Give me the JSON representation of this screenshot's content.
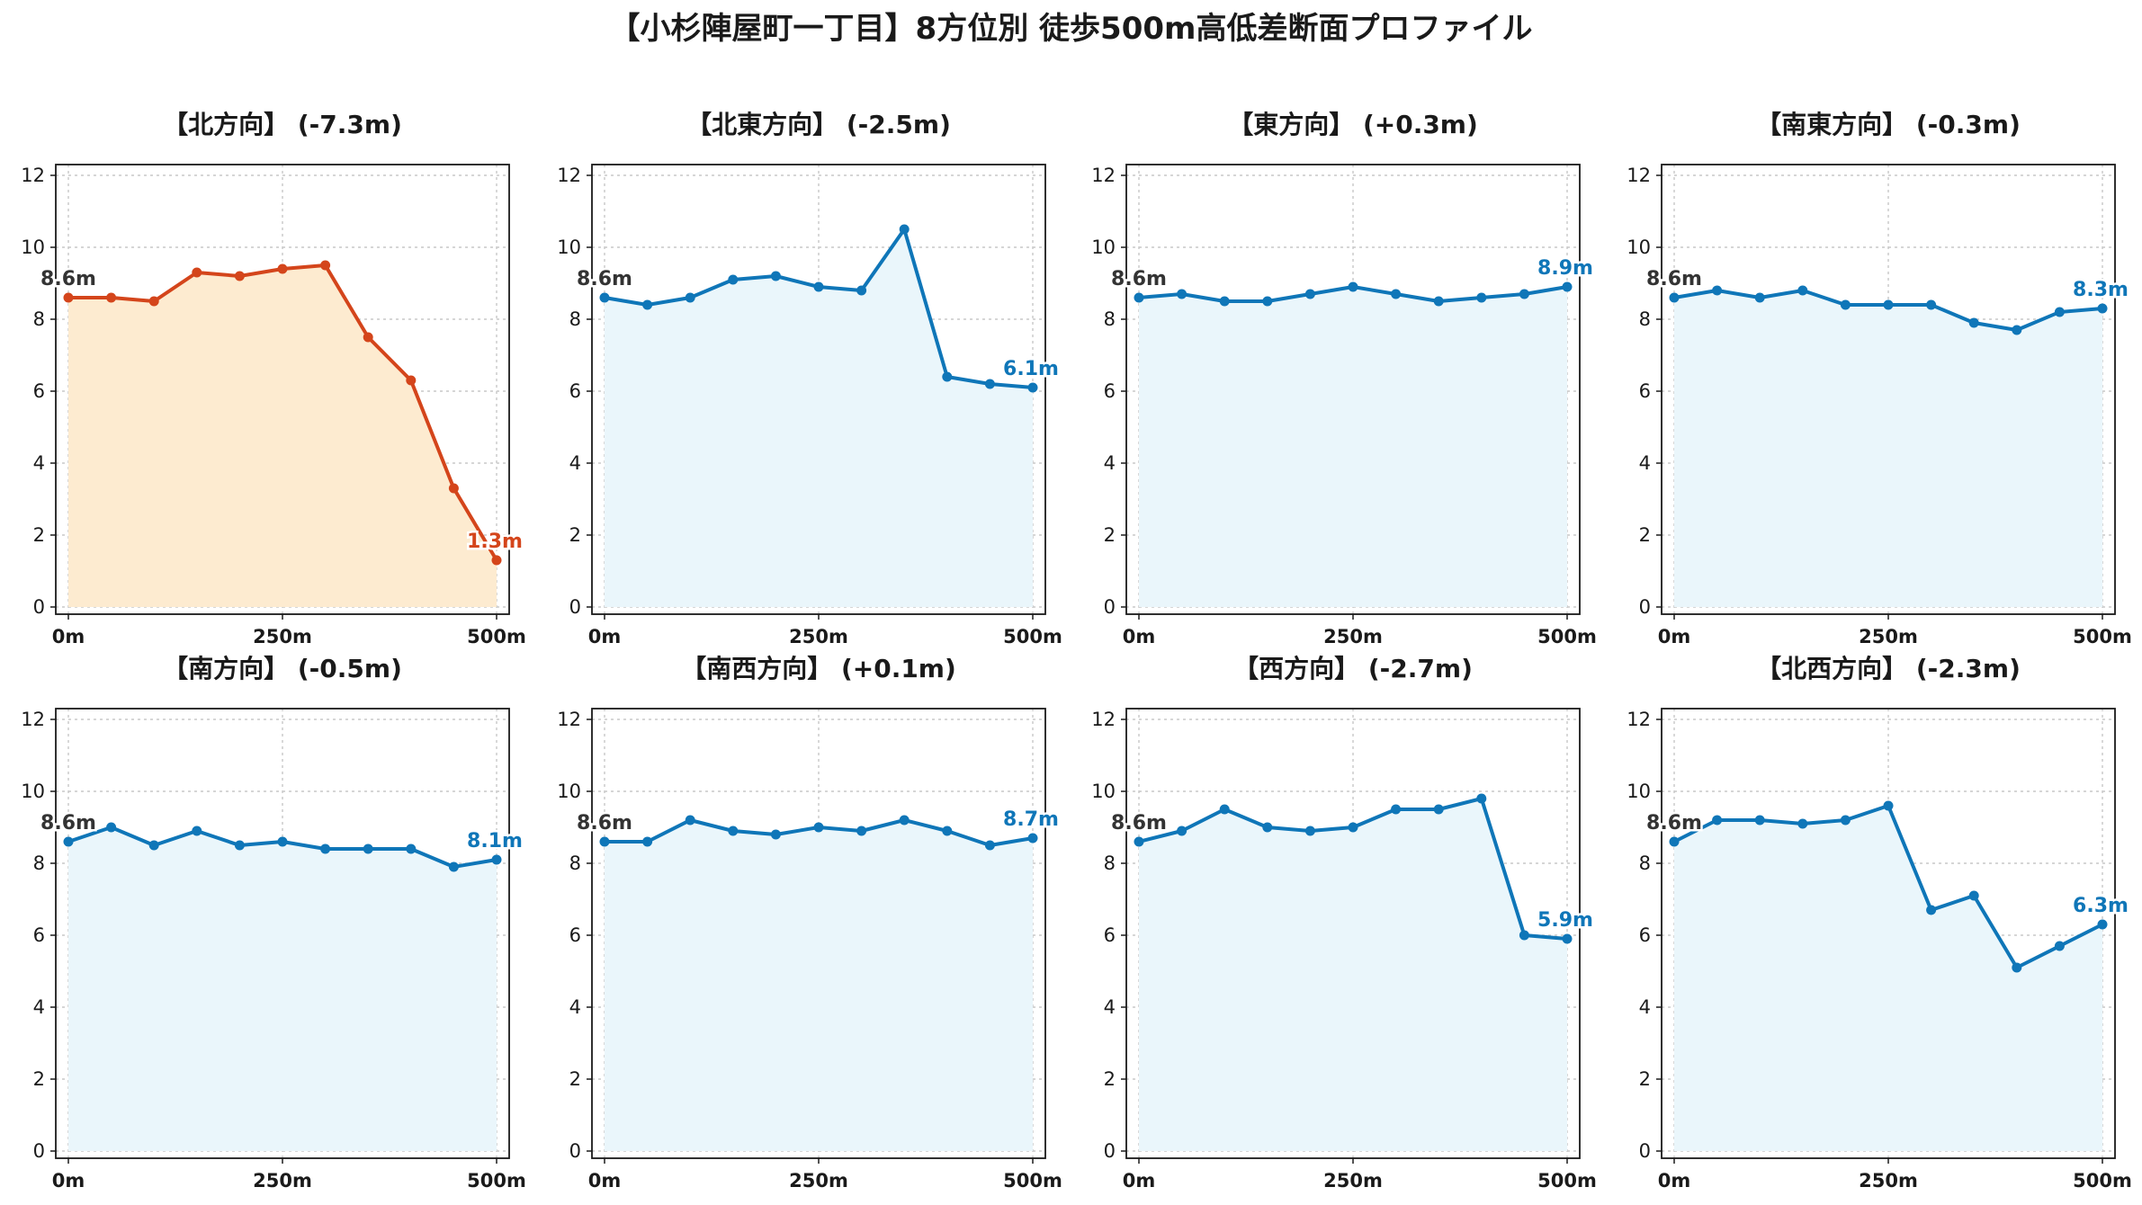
{
  "title": "【小杉陣屋町一丁目】8方位別 徒歩500m高低差断面プロファイル",
  "colors": {
    "down_line": "#d4451b",
    "down_fill": "#fdebd0",
    "normal_line": "#0f76b8",
    "normal_fill": "#eaf6fb",
    "start_label": "#333333",
    "grid": "#c8c8c8"
  },
  "chart_data": [
    {
      "type": "line",
      "title": "【北方向】 (-7.3m)",
      "style": "down",
      "x": [
        0,
        50,
        100,
        150,
        200,
        250,
        300,
        350,
        400,
        450,
        500
      ],
      "values": [
        8.6,
        8.6,
        8.5,
        9.3,
        9.2,
        9.4,
        9.5,
        7.5,
        6.3,
        3.3,
        1.3
      ],
      "xticks": [
        "0m",
        "250m",
        "500m"
      ],
      "yticks": [
        "0",
        "2",
        "4",
        "6",
        "8",
        "10",
        "12"
      ],
      "xlim": [
        0,
        500
      ],
      "ylim": [
        0,
        12.3
      ],
      "grid": true,
      "start_label": "8.6m",
      "end_label": "1.3m"
    },
    {
      "type": "line",
      "title": "【北東方向】 (-2.5m)",
      "style": "normal",
      "x": [
        0,
        50,
        100,
        150,
        200,
        250,
        300,
        350,
        400,
        450,
        500
      ],
      "values": [
        8.6,
        8.4,
        8.6,
        9.1,
        9.2,
        8.9,
        8.8,
        10.5,
        6.4,
        6.2,
        6.1
      ],
      "xticks": [
        "0m",
        "250m",
        "500m"
      ],
      "yticks": [
        "0",
        "2",
        "4",
        "6",
        "8",
        "10",
        "12"
      ],
      "xlim": [
        0,
        500
      ],
      "ylim": [
        0,
        12.3
      ],
      "grid": true,
      "start_label": "8.6m",
      "end_label": "6.1m"
    },
    {
      "type": "line",
      "title": "【東方向】 (+0.3m)",
      "style": "normal",
      "x": [
        0,
        50,
        100,
        150,
        200,
        250,
        300,
        350,
        400,
        450,
        500
      ],
      "values": [
        8.6,
        8.7,
        8.5,
        8.5,
        8.7,
        8.9,
        8.7,
        8.5,
        8.6,
        8.7,
        8.9
      ],
      "xticks": [
        "0m",
        "250m",
        "500m"
      ],
      "yticks": [
        "0",
        "2",
        "4",
        "6",
        "8",
        "10",
        "12"
      ],
      "xlim": [
        0,
        500
      ],
      "ylim": [
        0,
        12.3
      ],
      "grid": true,
      "start_label": "8.6m",
      "end_label": "8.9m"
    },
    {
      "type": "line",
      "title": "【南東方向】 (-0.3m)",
      "style": "normal",
      "x": [
        0,
        50,
        100,
        150,
        200,
        250,
        300,
        350,
        400,
        450,
        500
      ],
      "values": [
        8.6,
        8.8,
        8.6,
        8.8,
        8.4,
        8.4,
        8.4,
        7.9,
        7.7,
        8.2,
        8.3
      ],
      "xticks": [
        "0m",
        "250m",
        "500m"
      ],
      "yticks": [
        "0",
        "2",
        "4",
        "6",
        "8",
        "10",
        "12"
      ],
      "xlim": [
        0,
        500
      ],
      "ylim": [
        0,
        12.3
      ],
      "grid": true,
      "start_label": "8.6m",
      "end_label": "8.3m"
    },
    {
      "type": "line",
      "title": "【南方向】 (-0.5m)",
      "style": "normal",
      "x": [
        0,
        50,
        100,
        150,
        200,
        250,
        300,
        350,
        400,
        450,
        500
      ],
      "values": [
        8.6,
        9.0,
        8.5,
        8.9,
        8.5,
        8.6,
        8.4,
        8.4,
        8.4,
        7.9,
        8.1
      ],
      "xticks": [
        "0m",
        "250m",
        "500m"
      ],
      "yticks": [
        "0",
        "2",
        "4",
        "6",
        "8",
        "10",
        "12"
      ],
      "xlim": [
        0,
        500
      ],
      "ylim": [
        0,
        12.3
      ],
      "grid": true,
      "start_label": "8.6m",
      "end_label": "8.1m"
    },
    {
      "type": "line",
      "title": "【南西方向】 (+0.1m)",
      "style": "normal",
      "x": [
        0,
        50,
        100,
        150,
        200,
        250,
        300,
        350,
        400,
        450,
        500
      ],
      "values": [
        8.6,
        8.6,
        9.2,
        8.9,
        8.8,
        9.0,
        8.9,
        9.2,
        8.9,
        8.5,
        8.7
      ],
      "xticks": [
        "0m",
        "250m",
        "500m"
      ],
      "yticks": [
        "0",
        "2",
        "4",
        "6",
        "8",
        "10",
        "12"
      ],
      "xlim": [
        0,
        500
      ],
      "ylim": [
        0,
        12.3
      ],
      "grid": true,
      "start_label": "8.6m",
      "end_label": "8.7m"
    },
    {
      "type": "line",
      "title": "【西方向】 (-2.7m)",
      "style": "normal",
      "x": [
        0,
        50,
        100,
        150,
        200,
        250,
        300,
        350,
        400,
        450,
        500
      ],
      "values": [
        8.6,
        8.9,
        9.5,
        9.0,
        8.9,
        9.0,
        9.5,
        9.5,
        9.8,
        6.0,
        5.9
      ],
      "xticks": [
        "0m",
        "250m",
        "500m"
      ],
      "yticks": [
        "0",
        "2",
        "4",
        "6",
        "8",
        "10",
        "12"
      ],
      "xlim": [
        0,
        500
      ],
      "ylim": [
        0,
        12.3
      ],
      "grid": true,
      "start_label": "8.6m",
      "end_label": "5.9m"
    },
    {
      "type": "line",
      "title": "【北西方向】 (-2.3m)",
      "style": "normal",
      "x": [
        0,
        50,
        100,
        150,
        200,
        250,
        300,
        350,
        400,
        450,
        500
      ],
      "values": [
        8.6,
        9.2,
        9.2,
        9.1,
        9.2,
        9.6,
        6.7,
        7.1,
        5.1,
        5.7,
        6.3
      ],
      "xticks": [
        "0m",
        "250m",
        "500m"
      ],
      "yticks": [
        "0",
        "2",
        "4",
        "6",
        "8",
        "10",
        "12"
      ],
      "xlim": [
        0,
        500
      ],
      "ylim": [
        0,
        12.3
      ],
      "grid": true,
      "start_label": "8.6m",
      "end_label": "6.3m"
    }
  ]
}
